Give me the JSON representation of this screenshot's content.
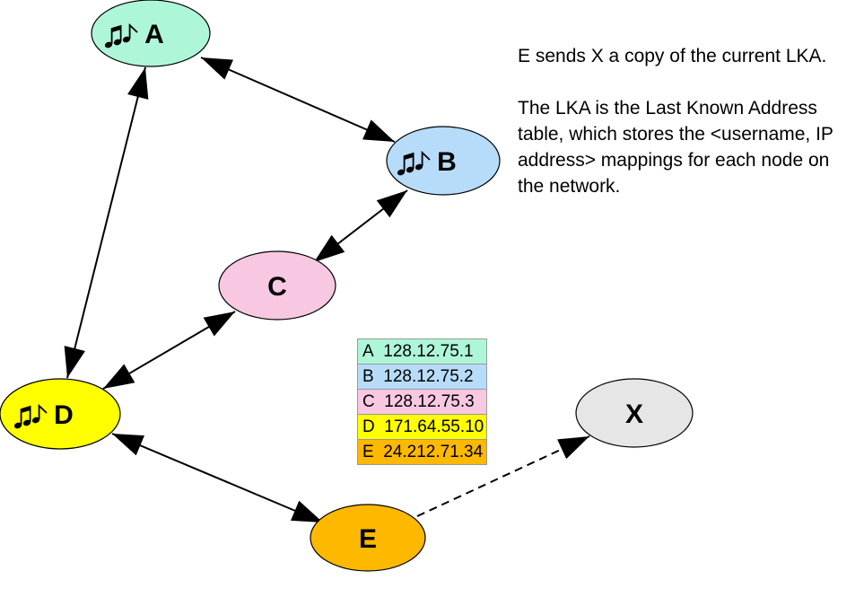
{
  "nodes": [
    {
      "id": "A",
      "label": "A",
      "color": "#AEF6D8",
      "music": true
    },
    {
      "id": "B",
      "label": "B",
      "color": "#B7DCFA",
      "music": true
    },
    {
      "id": "C",
      "label": "C",
      "color": "#F8C8E2",
      "music": false
    },
    {
      "id": "D",
      "label": "D",
      "color": "#FFFF00",
      "music": true
    },
    {
      "id": "E",
      "label": "E",
      "color": "#FDB800",
      "music": false
    },
    {
      "id": "X",
      "label": "X",
      "color": "#E6E6E6",
      "music": false
    }
  ],
  "edges": [
    {
      "from": "A",
      "to": "B",
      "style": "solid",
      "arrows": "both"
    },
    {
      "from": "B",
      "to": "C",
      "style": "solid",
      "arrows": "both"
    },
    {
      "from": "A",
      "to": "D",
      "style": "solid",
      "arrows": "both"
    },
    {
      "from": "C",
      "to": "D",
      "style": "solid",
      "arrows": "both"
    },
    {
      "from": "D",
      "to": "E",
      "style": "solid",
      "arrows": "both"
    },
    {
      "from": "E",
      "to": "X",
      "style": "dashed",
      "arrows": "to"
    }
  ],
  "music_icon": "music-notes-icon",
  "caption": {
    "line1": "E sends X a copy of the current LKA.",
    "line2": "The LKA is the Last Known Address table, which stores the <username, IP address> mappings for each node on the network."
  },
  "lka_table": [
    {
      "node": "A",
      "ip": "128.12.75.1",
      "color": "#AEF6D8"
    },
    {
      "node": "B",
      "ip": "128.12.75.2",
      "color": "#B7DCFA"
    },
    {
      "node": "C",
      "ip": "128.12.75.3",
      "color": "#F8C8E2"
    },
    {
      "node": "D",
      "ip": "171.64.55.10",
      "color": "#FFFF00"
    },
    {
      "node": "E",
      "ip": "24.212.71.34",
      "color": "#FDB800"
    }
  ]
}
